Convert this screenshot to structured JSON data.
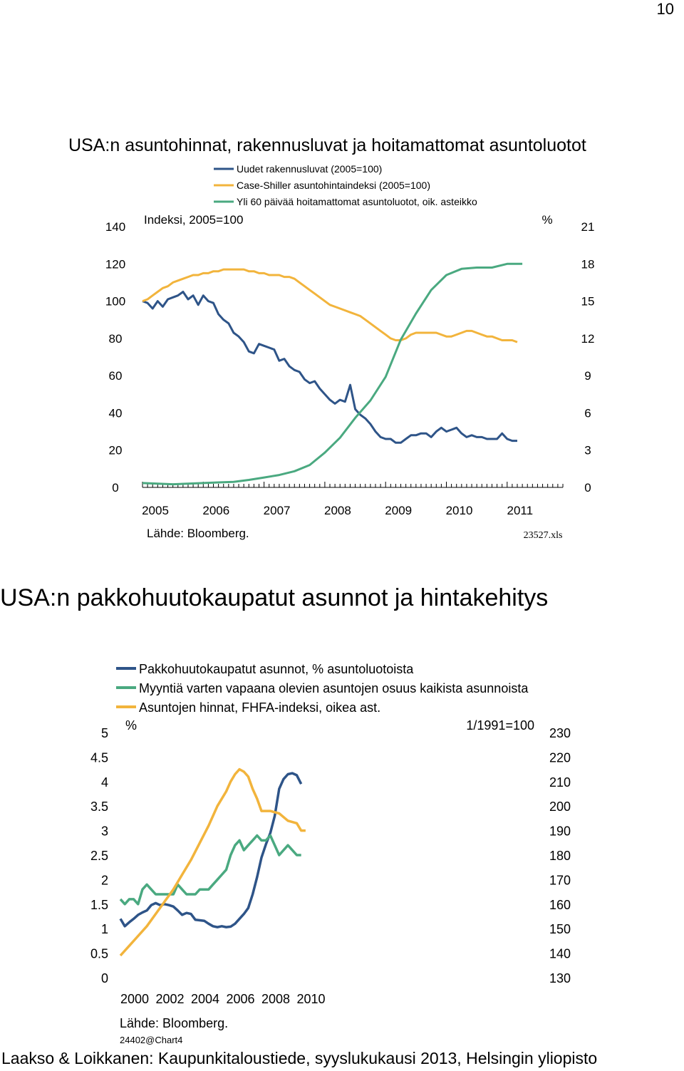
{
  "page_number": "10",
  "footer": "Laakso & Loikkanen: Kaupunkitaloustiede, syyslukukausi 2013, Helsingin yliopisto",
  "chart_data": [
    {
      "type": "line",
      "title": "USA:n asuntohinnat, rakennusluvat ja hoitamattomat asuntoluotot",
      "y_left_label": "Indeksi, 2005=100",
      "y_right_label": "%",
      "source": "Lähde: Bloomberg.",
      "file_label": "23527.xls",
      "x_ticks": [
        "2005",
        "2006",
        "2007",
        "2008",
        "2009",
        "2010",
        "2011"
      ],
      "y_left_ticks": [
        "0",
        "20",
        "40",
        "60",
        "80",
        "100",
        "120",
        "140"
      ],
      "y_right_ticks": [
        "0",
        "3",
        "6",
        "9",
        "12",
        "15",
        "18",
        "21"
      ],
      "ylim_left": [
        0,
        140
      ],
      "ylim_right": [
        0,
        21
      ],
      "xlim": [
        2005,
        2012.0
      ],
      "grid": false,
      "legend_position": "top",
      "series": [
        {
          "name": "Uudet rakennusluvat (2005=100)",
          "color": "#2e5488",
          "axis": "left",
          "x": [
            2005.0,
            2005.083,
            2005.167,
            2005.25,
            2005.333,
            2005.417,
            2005.5,
            2005.583,
            2005.667,
            2005.75,
            2005.833,
            2005.917,
            2006.0,
            2006.083,
            2006.167,
            2006.25,
            2006.333,
            2006.417,
            2006.5,
            2006.583,
            2006.667,
            2006.75,
            2006.833,
            2006.917,
            2007.0,
            2007.083,
            2007.167,
            2007.25,
            2007.333,
            2007.417,
            2007.5,
            2007.583,
            2007.667,
            2007.75,
            2007.833,
            2007.917,
            2008.0,
            2008.083,
            2008.167,
            2008.25,
            2008.333,
            2008.417,
            2008.5,
            2008.583,
            2008.667,
            2008.75,
            2008.833,
            2008.917,
            2009.0,
            2009.083,
            2009.167,
            2009.25,
            2009.333,
            2009.417,
            2009.5,
            2009.583,
            2009.667,
            2009.75,
            2009.833,
            2009.917,
            2010.0,
            2010.083,
            2010.167,
            2010.25,
            2010.333,
            2010.417,
            2010.5,
            2010.583,
            2010.667,
            2010.75,
            2010.833,
            2010.917,
            2011.0,
            2011.083,
            2011.167
          ],
          "values": [
            100,
            99,
            96,
            100,
            97,
            101,
            102,
            103,
            105,
            101,
            103,
            98,
            103,
            100,
            99,
            93,
            90,
            88,
            83,
            81,
            78,
            73,
            72,
            77,
            76,
            75,
            74,
            68,
            69,
            65,
            63,
            62,
            58,
            56,
            57,
            53,
            50,
            47,
            45,
            47,
            46,
            55,
            42,
            39,
            37,
            34,
            30,
            27,
            26,
            26,
            24,
            24,
            26,
            28,
            28,
            29,
            29,
            27,
            30,
            32,
            30,
            31,
            32,
            29,
            27,
            28,
            27,
            27,
            26,
            26,
            26,
            29,
            26,
            25,
            25
          ]
        },
        {
          "name": "Case-Shiller asuntohintaindeksi (2005=100)",
          "color": "#f2b43c",
          "axis": "left",
          "x": [
            2005.0,
            2005.083,
            2005.167,
            2005.25,
            2005.333,
            2005.417,
            2005.5,
            2005.583,
            2005.667,
            2005.75,
            2005.833,
            2005.917,
            2006.0,
            2006.083,
            2006.167,
            2006.25,
            2006.333,
            2006.417,
            2006.5,
            2006.583,
            2006.667,
            2006.75,
            2006.833,
            2006.917,
            2007.0,
            2007.083,
            2007.167,
            2007.25,
            2007.333,
            2007.417,
            2007.5,
            2007.583,
            2007.667,
            2007.75,
            2007.833,
            2007.917,
            2008.0,
            2008.083,
            2008.167,
            2008.25,
            2008.333,
            2008.417,
            2008.5,
            2008.583,
            2008.667,
            2008.75,
            2008.833,
            2008.917,
            2009.0,
            2009.083,
            2009.167,
            2009.25,
            2009.333,
            2009.417,
            2009.5,
            2009.583,
            2009.667,
            2009.75,
            2009.833,
            2009.917,
            2010.0,
            2010.083,
            2010.167,
            2010.25,
            2010.333,
            2010.417,
            2010.5,
            2010.583,
            2010.667,
            2010.75,
            2010.833,
            2010.917,
            2011.0,
            2011.083,
            2011.167
          ],
          "values": [
            100,
            101,
            103,
            105,
            107,
            108,
            110,
            111,
            112,
            113,
            114,
            114,
            115,
            115,
            116,
            116,
            117,
            117,
            117,
            117,
            117,
            116,
            116,
            115,
            115,
            114,
            114,
            114,
            113,
            113,
            112,
            110,
            108,
            106,
            104,
            102,
            100,
            98,
            97,
            96,
            95,
            94,
            93,
            92,
            90,
            88,
            86,
            84,
            82,
            80,
            79,
            79,
            80,
            82,
            83,
            83,
            83,
            83,
            83,
            82,
            81,
            81,
            82,
            83,
            84,
            84,
            83,
            82,
            81,
            81,
            80,
            79,
            79,
            79,
            78
          ]
        },
        {
          "name": "Yli 60 päivää hoitamattomat asuntoluotot, oik. asteikko",
          "color": "#4aa980",
          "axis": "right",
          "x": [
            2005.0,
            2005.25,
            2005.5,
            2005.75,
            2006.0,
            2006.25,
            2006.5,
            2006.75,
            2007.0,
            2007.25,
            2007.5,
            2007.75,
            2008.0,
            2008.25,
            2008.5,
            2008.75,
            2009.0,
            2009.25,
            2009.5,
            2009.75,
            2010.0,
            2010.25,
            2010.5,
            2010.75,
            2011.0,
            2011.25
          ],
          "values": [
            0.35,
            0.3,
            0.25,
            0.3,
            0.35,
            0.4,
            0.45,
            0.6,
            0.8,
            1.0,
            1.3,
            1.8,
            2.8,
            4.0,
            5.6,
            7.0,
            8.9,
            11.9,
            14.0,
            15.9,
            17.1,
            17.6,
            17.7,
            17.7,
            18.0,
            18.0
          ]
        }
      ]
    },
    {
      "type": "line",
      "title": "USA:n pakkohuutokaupatut asunnot ja hintakehitys",
      "y_left_label": "%",
      "y_right_label": "1/1991=100",
      "source": "Lähde: Bloomberg.",
      "file_label": "24402@Chart4",
      "x_ticks": [
        "2000",
        "2002",
        "2004",
        "2006",
        "2008",
        "2010"
      ],
      "y_left_ticks": [
        "0",
        "0.5",
        "1",
        "1.5",
        "2",
        "2.5",
        "3",
        "3.5",
        "4",
        "4.5",
        "5"
      ],
      "y_right_ticks": [
        "130",
        "140",
        "150",
        "160",
        "170",
        "180",
        "190",
        "200",
        "210",
        "220",
        "230"
      ],
      "ylim_left": [
        0,
        5
      ],
      "ylim_right": [
        130,
        230
      ],
      "xlim": [
        2000,
        2011.25
      ],
      "grid": false,
      "legend_position": "top",
      "series": [
        {
          "name": "Pakkohuutokaupatut asunnot, % asuntoluotoista",
          "color": "#2e5488",
          "axis": "left",
          "x": [
            2000.0,
            2000.25,
            2000.5,
            2000.75,
            2001.0,
            2001.25,
            2001.5,
            2001.75,
            2002.0,
            2002.25,
            2002.5,
            2002.75,
            2003.0,
            2003.25,
            2003.5,
            2003.75,
            2004.0,
            2004.25,
            2004.5,
            2004.75,
            2005.0,
            2005.25,
            2005.5,
            2005.75,
            2006.0,
            2006.25,
            2006.5,
            2006.75,
            2007.0,
            2007.25,
            2007.5,
            2007.75,
            2008.0,
            2008.25,
            2008.5,
            2008.75,
            2009.0,
            2009.25,
            2009.5,
            2009.75,
            2010.0,
            2010.25
          ],
          "values": [
            1.2,
            1.05,
            1.13,
            1.2,
            1.28,
            1.33,
            1.37,
            1.48,
            1.52,
            1.48,
            1.5,
            1.48,
            1.45,
            1.37,
            1.28,
            1.32,
            1.3,
            1.18,
            1.17,
            1.16,
            1.1,
            1.05,
            1.03,
            1.05,
            1.03,
            1.04,
            1.1,
            1.2,
            1.3,
            1.42,
            1.7,
            2.05,
            2.45,
            2.72,
            2.95,
            3.3,
            3.85,
            4.05,
            4.15,
            4.17,
            4.13,
            3.95
          ]
        },
        {
          "name": "Myyntiä varten vapaana olevien asuntojen osuus kaikista asunnoista",
          "color": "#4aa980",
          "axis": "left",
          "x": [
            2000.0,
            2000.25,
            2000.5,
            2000.75,
            2001.0,
            2001.25,
            2001.5,
            2001.75,
            2002.0,
            2002.25,
            2002.5,
            2002.75,
            2003.0,
            2003.25,
            2003.5,
            2003.75,
            2004.0,
            2004.25,
            2004.5,
            2004.75,
            2005.0,
            2005.25,
            2005.5,
            2005.75,
            2006.0,
            2006.25,
            2006.5,
            2006.75,
            2007.0,
            2007.25,
            2007.5,
            2007.75,
            2008.0,
            2008.25,
            2008.5,
            2008.75,
            2009.0,
            2009.25,
            2009.5,
            2009.75,
            2010.0,
            2010.25
          ],
          "values": [
            1.6,
            1.5,
            1.6,
            1.6,
            1.5,
            1.8,
            1.9,
            1.8,
            1.7,
            1.7,
            1.7,
            1.7,
            1.7,
            1.9,
            1.8,
            1.7,
            1.7,
            1.7,
            1.8,
            1.8,
            1.8,
            1.9,
            2.0,
            2.1,
            2.2,
            2.5,
            2.7,
            2.8,
            2.6,
            2.7,
            2.8,
            2.9,
            2.8,
            2.8,
            2.9,
            2.7,
            2.5,
            2.6,
            2.7,
            2.6,
            2.5,
            2.5
          ]
        },
        {
          "name": "Asuntojen hinnat, FHFA-indeksi, oikea ast.",
          "color": "#f2b43c",
          "axis": "right",
          "x": [
            2000.0,
            2000.5,
            2001.0,
            2001.5,
            2002.0,
            2002.5,
            2003.0,
            2003.5,
            2004.0,
            2004.5,
            2005.0,
            2005.5,
            2006.0,
            2006.25,
            2006.5,
            2006.75,
            2007.0,
            2007.25,
            2007.5,
            2007.75,
            2008.0,
            2008.5,
            2009.0,
            2009.5,
            2010.0,
            2010.25,
            2010.5
          ],
          "values": [
            139,
            143,
            147,
            151,
            156,
            161,
            166,
            172,
            178,
            185,
            192,
            200,
            206,
            210,
            213,
            215,
            214,
            212,
            207,
            203,
            198,
            198,
            197,
            194,
            193,
            190,
            190
          ]
        }
      ]
    }
  ]
}
